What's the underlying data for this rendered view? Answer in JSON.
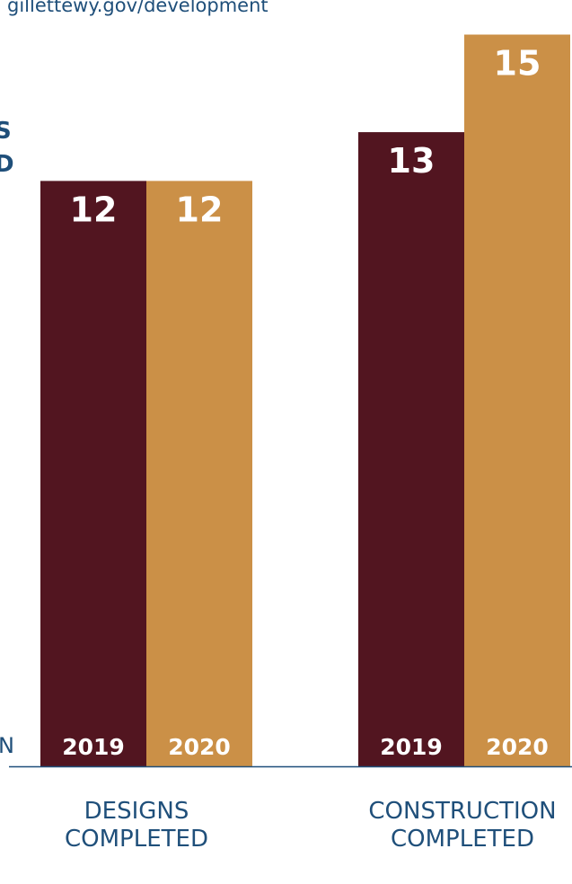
{
  "header": {
    "url": "gillettewy.gov/development"
  },
  "edge_fragments": {
    "left_top": "S",
    "left_mid": "D",
    "left_bottom": "N"
  },
  "colors": {
    "series_2019": "#521520",
    "series_2020": "#CB9047",
    "axis": "#1f4f7a"
  },
  "chart_data": {
    "type": "bar",
    "title": "",
    "xlabel": "",
    "ylabel": "",
    "ylim": [
      0,
      15
    ],
    "categories": [
      {
        "line1": "DESIGNS",
        "line2": "COMPLETED"
      },
      {
        "line1": "CONSTRUCTION",
        "line2": "COMPLETED"
      }
    ],
    "series": [
      {
        "name": "2019",
        "values": [
          12,
          13
        ]
      },
      {
        "name": "2020",
        "values": [
          12,
          15
        ]
      }
    ],
    "legend": "none",
    "grid": false
  }
}
